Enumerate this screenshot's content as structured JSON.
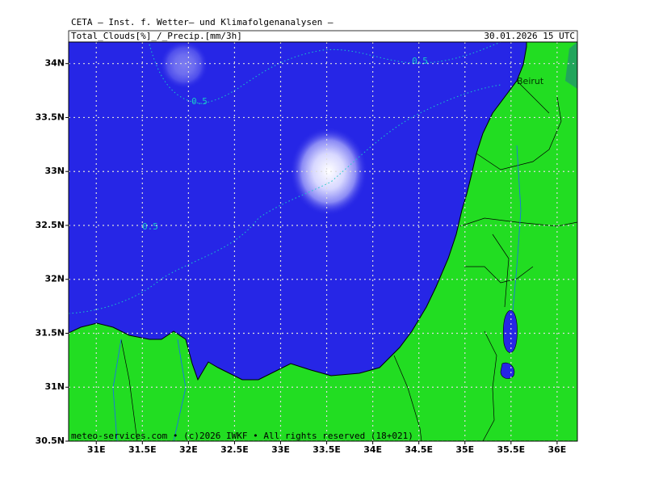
{
  "header": {
    "title": "CETA — Inst. f. Wetter— und Klimafolgenanalysen —",
    "parameter": "Total_Clouds[%]_/_Precip.[mm/3h]",
    "valid_time": "30.01.2026 15 UTC"
  },
  "map": {
    "lon_range": [
      30.7,
      36.22
    ],
    "lat_range": [
      30.5,
      34.2
    ],
    "lon_ticks": [
      {
        "value": 31,
        "label": "31E"
      },
      {
        "value": 31.5,
        "label": "31.5E"
      },
      {
        "value": 32,
        "label": "32E"
      },
      {
        "value": 32.5,
        "label": "32.5E"
      },
      {
        "value": 33,
        "label": "33E"
      },
      {
        "value": 33.5,
        "label": "33.5E"
      },
      {
        "value": 34,
        "label": "34E"
      },
      {
        "value": 34.5,
        "label": "34.5E"
      },
      {
        "value": 35,
        "label": "35E"
      },
      {
        "value": 35.5,
        "label": "35.5E"
      },
      {
        "value": 36,
        "label": "36E"
      }
    ],
    "lat_ticks": [
      {
        "value": 34,
        "label": "34N"
      },
      {
        "value": 33.5,
        "label": "33.5N"
      },
      {
        "value": 33,
        "label": "33N"
      },
      {
        "value": 32.5,
        "label": "32.5N"
      },
      {
        "value": 32,
        "label": "32N"
      },
      {
        "value": 31.5,
        "label": "31.5N"
      },
      {
        "value": 31,
        "label": "31N"
      },
      {
        "value": 30.5,
        "label": "30.5N"
      }
    ],
    "city": "Beirut",
    "contour_labels": [
      "0.5",
      "0.5",
      "0.5"
    ]
  },
  "footer": "meteo-services.com • (c)2026 IWKF • All rights reserved (18+021)"
}
